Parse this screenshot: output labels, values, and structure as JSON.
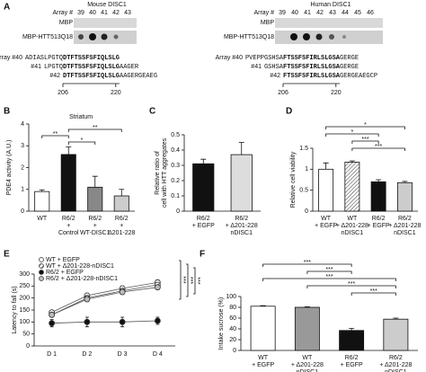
{
  "panel_a": {
    "label": "A",
    "mouse": {
      "title": "Mouse DISC1",
      "array_label": "Array #",
      "arrays": [
        "39",
        "40",
        "41",
        "42",
        "43"
      ],
      "row_labels": [
        "MBP",
        "MBP-HTT513Q18"
      ],
      "seqs": [
        {
          "label": "Array #40",
          "plain": "ADIASLPGTQ",
          "bold": "DTFTSSFSFIQLSLG"
        },
        {
          "label": "#41",
          "plain": "LPGTQ",
          "bold": "DTFTSSFSFIQLSLG",
          "tail": "AAGER"
        },
        {
          "label": "#42",
          "bold": "DTFTSSFSFIQLSLG",
          "tail": "AAGERGEAEG"
        }
      ],
      "ticks": [
        "206",
        "220"
      ]
    },
    "human": {
      "title": "Human DISC1",
      "array_label": "Array #",
      "arrays": [
        "39",
        "40",
        "41",
        "42",
        "43",
        "44",
        "45",
        "46"
      ],
      "row_labels": [
        "MBP",
        "MBP-HTT513Q18"
      ],
      "seqs": [
        {
          "label": "Array #40",
          "plain": "PVEPPGSHSA",
          "bold": "FTSSFSFIRLSLGSA",
          "tail": "GERGE"
        },
        {
          "label": "#41",
          "plain": "GSHSA",
          "bold": "FTSSFSFIRLSLGSA",
          "tail": "GERGE"
        },
        {
          "label": "#42",
          "bold": "FTSSFSFIRLSLGSA",
          "tail": "GERGEAEGCP"
        }
      ],
      "ticks": [
        "206",
        "220"
      ]
    }
  },
  "chart_data": [
    {
      "panel": "B",
      "type": "bar",
      "title": "Striatum",
      "ylabel": [
        "PDE4 activity (A.U.)"
      ],
      "categories": [
        [
          "WT"
        ],
        [
          "R6/2",
          "+",
          "Control"
        ],
        [
          "R6/2",
          "+",
          "WT-DISC1"
        ],
        [
          "R6/2",
          "+",
          "Δ201-228"
        ]
      ],
      "values": [
        0.9,
        2.6,
        1.1,
        0.7
      ],
      "errors": [
        0.08,
        0.35,
        0.5,
        0.3
      ],
      "colors": [
        "#ffffff",
        "#111111",
        "#888888",
        "#cccccc"
      ],
      "hatched": [
        false,
        false,
        false,
        false
      ],
      "ylim": [
        0,
        4
      ],
      "yticks": [
        0,
        1,
        2,
        3,
        4
      ],
      "significance": [
        {
          "from": 1,
          "to": 3,
          "label": "**"
        },
        {
          "from": 0,
          "to": 1,
          "label": "**"
        },
        {
          "from": 1,
          "to": 2,
          "label": "*"
        }
      ]
    },
    {
      "panel": "C",
      "type": "bar",
      "ylabel": [
        "Relative ratio of",
        "cell with HTT aggregates"
      ],
      "categories": [
        [
          "R6/2",
          "+ EGFP"
        ],
        [
          "R6/2",
          "+ Δ201-228",
          "nDISC1"
        ]
      ],
      "values": [
        0.31,
        0.37
      ],
      "errors": [
        0.03,
        0.08
      ],
      "colors": [
        "#111111",
        "#dddddd"
      ],
      "hatched": [
        false,
        false
      ],
      "ylim": [
        0,
        0.5
      ],
      "yticks": [
        0,
        0.1,
        0.2,
        0.3,
        0.4,
        0.5
      ]
    },
    {
      "panel": "D",
      "type": "bar",
      "ylabel": [
        "Relative cell viability"
      ],
      "categories": [
        [
          "WT",
          "+ EGFP"
        ],
        [
          "WT",
          "+ Δ201-228",
          "nDISC1"
        ],
        [
          "R6/2",
          "+ EGFP"
        ],
        [
          "R6/2",
          "+ Δ201-228",
          "nDISC1"
        ]
      ],
      "values": [
        1.0,
        1.17,
        0.7,
        0.68
      ],
      "errors": [
        0.15,
        0.03,
        0.05,
        0.03
      ],
      "colors": [
        "#ffffff",
        "#ffffff",
        "#111111",
        "#cccccc"
      ],
      "hatched": [
        false,
        true,
        false,
        false
      ],
      "ylim": [
        0,
        1.5
      ],
      "yticks": [
        0,
        0.5,
        1,
        1.5
      ],
      "significance": [
        {
          "from": 0,
          "to": 3,
          "label": "*"
        },
        {
          "from": 0,
          "to": 2,
          "label": "*"
        },
        {
          "from": 1,
          "to": 2,
          "label": "***"
        },
        {
          "from": 1,
          "to": 3,
          "label": "***"
        }
      ]
    },
    {
      "panel": "E",
      "type": "line",
      "ylabel": [
        "Latency to fall (s)"
      ],
      "categories": [
        "D 1",
        "D 2",
        "D 3",
        "D 4"
      ],
      "series": [
        {
          "name": "WT + EGFP",
          "color": "#ffffff",
          "hatched": false,
          "values": [
            140,
            210,
            240,
            265
          ],
          "errors": [
            8,
            10,
            10,
            10
          ]
        },
        {
          "name": "WT + Δ201-228-nDISC1",
          "color": "#ffffff",
          "hatched": true,
          "values": [
            130,
            200,
            230,
            255
          ],
          "errors": [
            8,
            10,
            10,
            10
          ]
        },
        {
          "name": "R6/2 + EGFP",
          "color": "#111111",
          "hatched": false,
          "values": [
            95,
            100,
            100,
            105
          ],
          "errors": [
            15,
            20,
            20,
            15
          ]
        },
        {
          "name": "R6/2 + Δ201-228-nDISC1",
          "color": "#bbbbbb",
          "hatched": false,
          "values": [
            130,
            195,
            225,
            245
          ],
          "errors": [
            8,
            10,
            10,
            10
          ]
        }
      ],
      "ylim": [
        0,
        300
      ],
      "yticks": [
        0,
        50,
        100,
        150,
        200,
        250,
        300
      ],
      "significance": [
        "***",
        "***",
        "***"
      ]
    },
    {
      "panel": "F",
      "type": "bar",
      "ylabel": [
        "Intake sucrose (%)"
      ],
      "categories": [
        [
          "WT",
          "+ EGFP"
        ],
        [
          "WT",
          "+ Δ201-228",
          "nDISC1"
        ],
        [
          "R6/2",
          "+ EGFP"
        ],
        [
          "R6/2",
          "+ Δ201-228",
          "nDISC1"
        ]
      ],
      "values": [
        82,
        80,
        37,
        58
      ],
      "errors": [
        1,
        1,
        4,
        2
      ],
      "colors": [
        "#ffffff",
        "#999999",
        "#111111",
        "#cccccc"
      ],
      "hatched": [
        false,
        false,
        false,
        false
      ],
      "ylim": [
        0,
        100
      ],
      "yticks": [
        0,
        20,
        40,
        60,
        80,
        100
      ],
      "significance": [
        {
          "from": 0,
          "to": 2,
          "label": "***"
        },
        {
          "from": 1,
          "to": 2,
          "label": "***"
        },
        {
          "from": 0,
          "to": 3,
          "label": "***"
        },
        {
          "from": 1,
          "to": 3,
          "label": "***"
        },
        {
          "from": 2,
          "to": 3,
          "label": "***"
        }
      ]
    }
  ]
}
